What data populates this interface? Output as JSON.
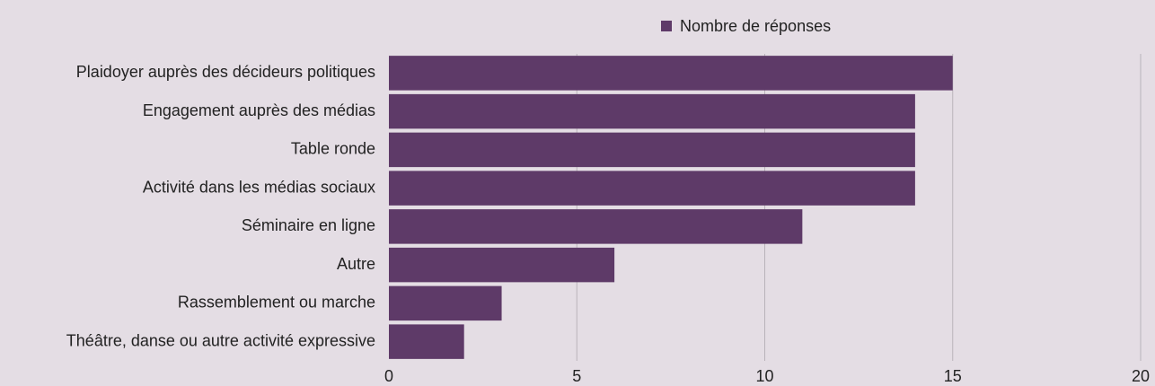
{
  "chart_data": {
    "type": "bar",
    "orientation": "horizontal",
    "categories": [
      "Plaidoyer auprès des décideurs politiques",
      "Engagement auprès des médias",
      "Table ronde",
      "Activité dans les médias sociaux",
      "Séminaire en ligne",
      "Autre",
      "Rassemblement ou marche",
      "Théâtre, danse ou autre activité expressive"
    ],
    "series": [
      {
        "name": "Nombre de réponses",
        "color": "#5e3a68",
        "values": [
          15,
          14,
          14,
          14,
          11,
          6,
          3,
          2
        ]
      }
    ],
    "xlim": [
      0,
      20
    ],
    "xticks": [
      0,
      5,
      10,
      15,
      20
    ],
    "grid": true,
    "legend": "top"
  }
}
